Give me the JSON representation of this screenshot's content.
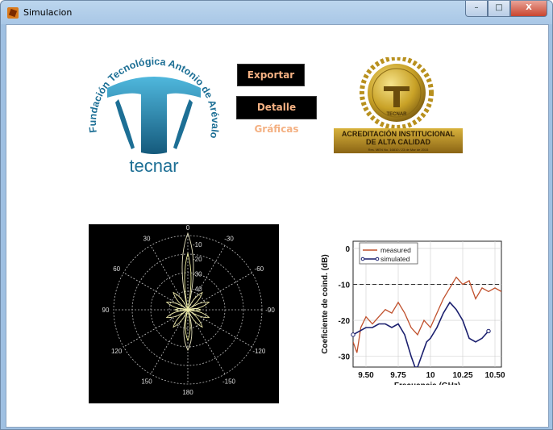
{
  "window": {
    "title": "Simulacion",
    "minimize": "–",
    "maximize": "□",
    "close": "X"
  },
  "buttons": {
    "exportar": "Exportar",
    "detalle": "Detalle Gráficas"
  },
  "logo": {
    "arc_text": "Fundación Tecnológica Antonio de Arévalo",
    "wordmark": "tecnar",
    "colors": {
      "primary": "#1d6f95",
      "accent": "#3aa9d1"
    }
  },
  "seal": {
    "banner_line1": "ACREDITACIÓN INSTITUCIONAL",
    "banner_line2": "DE ALTA CALIDAD",
    "small_print": "Res. MEN No. 16810 / 23 de Mar de 2015",
    "center_text": "TECNAR",
    "colors": {
      "gold": "#c9a227",
      "dark": "#7a5a10"
    }
  },
  "polar_plot": {
    "angle_labels": [
      "0",
      "30",
      "-30",
      "60",
      "-60",
      "90",
      "-90",
      "120",
      "-120",
      "150",
      "-150",
      "180"
    ],
    "radial_labels": [
      "-10",
      "-20",
      "-30",
      "-40"
    ]
  },
  "chart_data": {
    "type": "line",
    "xlabel": "Frecuancia (GHz)",
    "ylabel": "Coeficiente de coind. (dB)",
    "xticks": [
      "9.50",
      "9.75",
      "10",
      "10.25",
      "10.50"
    ],
    "yticks": [
      "0",
      "-10",
      "-20",
      "-30"
    ],
    "xlim": [
      9.4,
      10.55
    ],
    "ylim": [
      -33,
      2
    ],
    "reference_line": -10,
    "series": [
      {
        "name": "measured",
        "color": "#c0502c",
        "x": [
          9.4,
          9.43,
          9.46,
          9.5,
          9.55,
          9.6,
          9.65,
          9.7,
          9.75,
          9.8,
          9.85,
          9.9,
          9.95,
          10.0,
          10.05,
          10.1,
          10.15,
          10.2,
          10.25,
          10.3,
          10.35,
          10.4,
          10.45,
          10.5,
          10.55
        ],
        "y": [
          -26,
          -29,
          -22,
          -19,
          -21,
          -19,
          -17,
          -18,
          -15,
          -18,
          -22,
          -24,
          -20,
          -22,
          -18,
          -14,
          -11,
          -8,
          -10,
          -9,
          -14,
          -11,
          -12,
          -11,
          -12
        ]
      },
      {
        "name": "simulated",
        "color": "#1a1f6e",
        "x": [
          9.4,
          9.45,
          9.5,
          9.55,
          9.6,
          9.65,
          9.7,
          9.75,
          9.8,
          9.85,
          9.88,
          9.9,
          9.93,
          9.97,
          10.0,
          10.05,
          10.1,
          10.15,
          10.2,
          10.25,
          10.3,
          10.35,
          10.4,
          10.45
        ],
        "y": [
          -24,
          -23,
          -22,
          -22,
          -21,
          -21,
          -22,
          -21,
          -24,
          -30,
          -33,
          -33,
          -30,
          -26,
          -25,
          -22,
          -18,
          -15,
          -17,
          -20,
          -25,
          -26,
          -25,
          -23
        ]
      }
    ]
  }
}
